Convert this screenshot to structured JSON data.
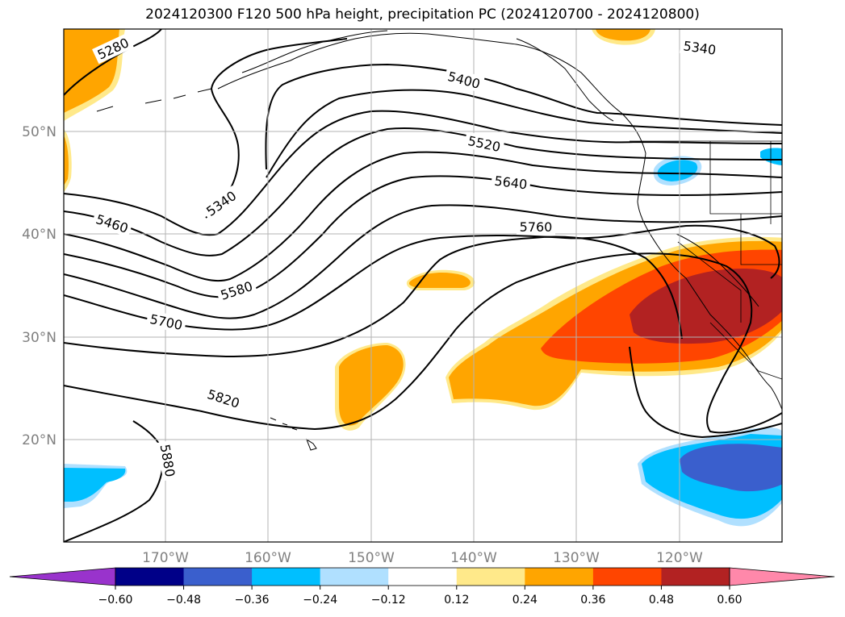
{
  "title": "2024120300 F120 500 hPa height, precipitation PC (2024120700 - 2024120800)",
  "latitude_labels": [
    "50°N",
    "40°N",
    "30°N",
    "20°N"
  ],
  "longitude_labels": [
    "170°W",
    "160°W",
    "150°W",
    "140°W",
    "130°W",
    "120°W"
  ],
  "height_contour_labels": [
    "5280",
    "5340",
    "5340",
    "5400",
    "5460",
    "5520",
    "5580",
    "5640",
    "5700",
    "5760",
    "5820",
    "5880"
  ],
  "colorbar": {
    "tick_labels": [
      "−0.60",
      "−0.48",
      "−0.36",
      "−0.24",
      "−0.12",
      "0.12",
      "0.24",
      "0.36",
      "0.48",
      "0.60"
    ],
    "colors": [
      "#9933cc",
      "#000088",
      "#3a5fcd",
      "#00bfff",
      "#b0e0ff",
      "#ffffff",
      "#ffe98a",
      "#ffa500",
      "#ff4500",
      "#b22222",
      "#ff88aa"
    ]
  }
}
